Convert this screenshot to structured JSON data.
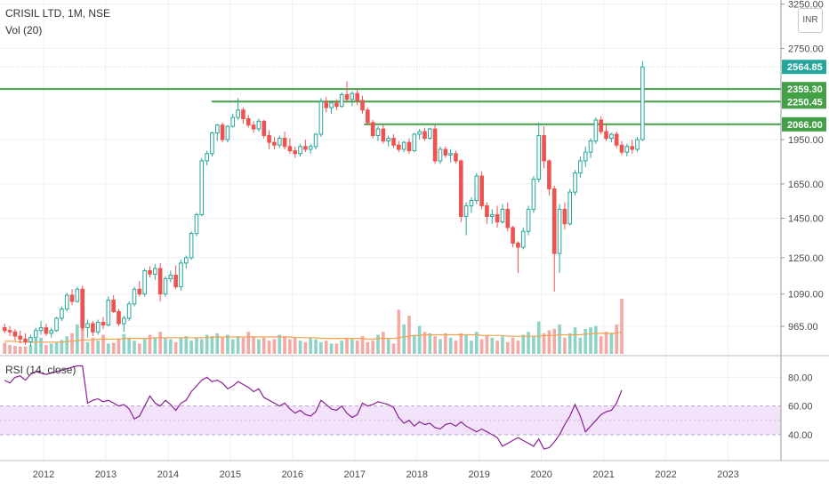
{
  "header": {
    "title": "CRISIL LTD, 1M, NSE",
    "volume_label": "Vol (20)",
    "rsi_label": "RSI (14, close)",
    "currency": "INR"
  },
  "colors": {
    "up": "#26a69a",
    "down": "#ef5350",
    "vol_up": "#8fd3c6",
    "vol_down": "#f4a9a5",
    "vol_ma": "#f4a24b",
    "rsi": "#8c1f96",
    "rsi_band": "#f2e3fb",
    "level": "#43a047",
    "grid": "#eef0f3",
    "axis_text": "#4a4a4a"
  },
  "chart_data": {
    "type": "candlestick",
    "price_axis": {
      "ticks": [
        "965.00",
        "1090.00",
        "1250.00",
        "1450.00",
        "1650.00",
        "1950.00",
        "2750.00",
        "3250.00"
      ],
      "tick_values": [
        965,
        1090,
        1250,
        1450,
        1650,
        1950,
        2750,
        3250
      ],
      "scale": "log",
      "range": [
        870,
        3300
      ]
    },
    "time_axis": {
      "ticks": [
        "2012",
        "2013",
        "2014",
        "2015",
        "2016",
        "2017",
        "2018",
        "2019",
        "2020",
        "2021",
        "2022",
        "2023"
      ],
      "range_years": [
        2011.3,
        2023.85
      ]
    },
    "levels": [
      {
        "label": "2359.30",
        "value": 2359.3,
        "start_year": 2011.3
      },
      {
        "label": "2250.45",
        "value": 2250.45,
        "start_year": 2014.7
      },
      {
        "label": "2066.00",
        "value": 2066.0,
        "start_year": 2017.15
      }
    ],
    "last_price": {
      "label": "2564.85",
      "value": 2564.85
    },
    "candles_start": {
      "year": 2011,
      "month": 5
    },
    "candles": [
      [
        960,
        975,
        940,
        950
      ],
      [
        950,
        965,
        930,
        945
      ],
      [
        945,
        955,
        915,
        930
      ],
      [
        930,
        950,
        905,
        920
      ],
      [
        920,
        940,
        900,
        910
      ],
      [
        910,
        935,
        895,
        925
      ],
      [
        925,
        960,
        915,
        950
      ],
      [
        950,
        985,
        935,
        960
      ],
      [
        960,
        975,
        930,
        940
      ],
      [
        940,
        960,
        925,
        950
      ],
      [
        950,
        1000,
        945,
        995
      ],
      [
        995,
        1040,
        985,
        1030
      ],
      [
        1030,
        1095,
        1020,
        1085
      ],
      [
        1085,
        1110,
        1045,
        1060
      ],
      [
        1060,
        1120,
        1055,
        1110
      ],
      [
        1110,
        1125,
        950,
        960
      ],
      [
        960,
        990,
        925,
        975
      ],
      [
        975,
        985,
        930,
        945
      ],
      [
        945,
        990,
        935,
        980
      ],
      [
        980,
        1000,
        955,
        970
      ],
      [
        970,
        1080,
        965,
        1065
      ],
      [
        1065,
        1085,
        1015,
        1020
      ],
      [
        1020,
        1030,
        965,
        975
      ],
      [
        975,
        1005,
        945,
        995
      ],
      [
        995,
        1060,
        985,
        1050
      ],
      [
        1050,
        1120,
        1040,
        1110
      ],
      [
        1110,
        1145,
        1080,
        1090
      ],
      [
        1090,
        1200,
        1080,
        1190
      ],
      [
        1190,
        1210,
        1160,
        1175
      ],
      [
        1175,
        1220,
        1150,
        1200
      ],
      [
        1200,
        1225,
        1060,
        1090
      ],
      [
        1090,
        1165,
        1080,
        1155
      ],
      [
        1155,
        1190,
        1140,
        1170
      ],
      [
        1170,
        1215,
        1110,
        1120
      ],
      [
        1120,
        1240,
        1105,
        1225
      ],
      [
        1225,
        1260,
        1200,
        1250
      ],
      [
        1250,
        1380,
        1240,
        1370
      ],
      [
        1370,
        1480,
        1355,
        1470
      ],
      [
        1470,
        1820,
        1460,
        1800
      ],
      [
        1800,
        1870,
        1770,
        1850
      ],
      [
        1850,
        2010,
        1830,
        2000
      ],
      [
        2000,
        2070,
        1940,
        2060
      ],
      [
        2060,
        2080,
        1930,
        1950
      ],
      [
        1950,
        2060,
        1930,
        2050
      ],
      [
        2050,
        2150,
        2040,
        2120
      ],
      [
        2120,
        2280,
        2100,
        2180
      ],
      [
        2180,
        2200,
        2070,
        2110
      ],
      [
        2110,
        2140,
        2040,
        2060
      ],
      [
        2060,
        2090,
        2000,
        2030
      ],
      [
        2030,
        2110,
        2010,
        2090
      ],
      [
        2090,
        2100,
        1960,
        1980
      ],
      [
        1980,
        2020,
        1880,
        1930
      ],
      [
        1930,
        1970,
        1880,
        1910
      ],
      [
        1910,
        1980,
        1890,
        1960
      ],
      [
        1960,
        2010,
        1880,
        1900
      ],
      [
        1900,
        1960,
        1850,
        1870
      ],
      [
        1870,
        1900,
        1820,
        1850
      ],
      [
        1850,
        1920,
        1830,
        1900
      ],
      [
        1900,
        1950,
        1860,
        1880
      ],
      [
        1880,
        1920,
        1850,
        1900
      ],
      [
        1900,
        2000,
        1880,
        1990
      ],
      [
        1990,
        2280,
        1970,
        2250
      ],
      [
        2250,
        2290,
        2160,
        2200
      ],
      [
        2200,
        2260,
        2150,
        2240
      ],
      [
        2240,
        2270,
        2180,
        2210
      ],
      [
        2210,
        2330,
        2200,
        2310
      ],
      [
        2310,
        2430,
        2240,
        2270
      ],
      [
        2270,
        2340,
        2210,
        2320
      ],
      [
        2320,
        2350,
        2220,
        2260
      ],
      [
        2260,
        2300,
        2150,
        2180
      ],
      [
        2180,
        2200,
        2060,
        2080
      ],
      [
        2080,
        2100,
        1960,
        1980
      ],
      [
        1980,
        2050,
        1940,
        2030
      ],
      [
        2030,
        2060,
        1920,
        1940
      ],
      [
        1940,
        1980,
        1900,
        1960
      ],
      [
        1960,
        1990,
        1890,
        1910
      ],
      [
        1910,
        1940,
        1860,
        1880
      ],
      [
        1880,
        1940,
        1860,
        1930
      ],
      [
        1930,
        1960,
        1850,
        1870
      ],
      [
        1870,
        2000,
        1860,
        1990
      ],
      [
        1990,
        2030,
        1950,
        2010
      ],
      [
        2010,
        2040,
        1940,
        1960
      ],
      [
        1960,
        2040,
        1950,
        2030
      ],
      [
        2030,
        2060,
        1780,
        1800
      ],
      [
        1800,
        1900,
        1780,
        1880
      ],
      [
        1880,
        1900,
        1820,
        1840
      ],
      [
        1840,
        1880,
        1790,
        1850
      ],
      [
        1850,
        1870,
        1780,
        1800
      ],
      [
        1800,
        1810,
        1430,
        1460
      ],
      [
        1460,
        1540,
        1360,
        1520
      ],
      [
        1520,
        1570,
        1480,
        1550
      ],
      [
        1550,
        1720,
        1530,
        1700
      ],
      [
        1700,
        1730,
        1500,
        1520
      ],
      [
        1520,
        1540,
        1420,
        1460
      ],
      [
        1460,
        1500,
        1420,
        1470
      ],
      [
        1470,
        1520,
        1400,
        1430
      ],
      [
        1430,
        1530,
        1420,
        1500
      ],
      [
        1500,
        1540,
        1380,
        1400
      ],
      [
        1400,
        1410,
        1300,
        1320
      ],
      [
        1320,
        1330,
        1180,
        1300
      ],
      [
        1300,
        1400,
        1290,
        1380
      ],
      [
        1380,
        1520,
        1360,
        1500
      ],
      [
        1500,
        1700,
        1480,
        1680
      ],
      [
        1680,
        2080,
        1660,
        1980
      ],
      [
        1980,
        2050,
        1750,
        1800
      ],
      [
        1800,
        1810,
        1580,
        1620
      ],
      [
        1620,
        1640,
        1100,
        1270
      ],
      [
        1270,
        1530,
        1180,
        1500
      ],
      [
        1500,
        1540,
        1390,
        1420
      ],
      [
        1420,
        1620,
        1410,
        1600
      ],
      [
        1600,
        1740,
        1580,
        1720
      ],
      [
        1720,
        1830,
        1690,
        1800
      ],
      [
        1800,
        1900,
        1760,
        1860
      ],
      [
        1860,
        1960,
        1820,
        1940
      ],
      [
        1940,
        2120,
        1920,
        2100
      ],
      [
        2100,
        2130,
        1990,
        2010
      ],
      [
        2010,
        2060,
        1940,
        1960
      ],
      [
        1960,
        2000,
        1930,
        1990
      ],
      [
        1990,
        2010,
        1890,
        1910
      ],
      [
        1910,
        1940,
        1840,
        1860
      ],
      [
        1860,
        1920,
        1830,
        1900
      ],
      [
        1900,
        1950,
        1850,
        1880
      ],
      [
        1880,
        1970,
        1860,
        1950
      ],
      [
        1950,
        2620,
        1940,
        2564.85
      ]
    ],
    "volume": [
      15,
      12,
      11,
      10,
      10,
      12,
      20,
      22,
      12,
      14,
      16,
      19,
      24,
      28,
      40,
      36,
      16,
      22,
      18,
      26,
      14,
      15,
      20,
      27,
      22,
      18,
      14,
      20,
      26,
      22,
      30,
      22,
      20,
      16,
      22,
      24,
      18,
      22,
      20,
      26,
      24,
      28,
      22,
      26,
      20,
      24,
      22,
      30,
      24,
      20,
      22,
      18,
      20,
      26,
      24,
      20,
      22,
      18,
      16,
      22,
      20,
      16,
      18,
      14,
      14,
      18,
      22,
      20,
      18,
      24,
      16,
      18,
      26,
      30,
      20,
      14,
      60,
      40,
      52,
      26,
      38,
      30,
      28,
      24,
      20,
      28,
      22,
      18,
      28,
      26,
      18,
      30,
      20,
      26,
      22,
      18,
      24,
      16,
      22,
      18,
      26,
      30,
      24,
      44,
      28,
      32,
      34,
      40,
      22,
      28,
      36,
      22,
      34,
      36,
      38,
      24,
      30,
      28,
      40,
      75
    ],
    "volume_ma": [
      17,
      17,
      17,
      16,
      16,
      16,
      16,
      16,
      16,
      16,
      16,
      16,
      17,
      17,
      18,
      19,
      19,
      19,
      20,
      20,
      20,
      20,
      20,
      21,
      21,
      21,
      21,
      21,
      21,
      22,
      22,
      22,
      22,
      22,
      22,
      22,
      22,
      22,
      22,
      22,
      23,
      23,
      23,
      23,
      23,
      23,
      23,
      23,
      23,
      23,
      23,
      23,
      23,
      23,
      23,
      23,
      22,
      22,
      22,
      22,
      22,
      21,
      21,
      21,
      21,
      21,
      21,
      21,
      21,
      21,
      20,
      20,
      21,
      21,
      21,
      21,
      22,
      23,
      24,
      25,
      25,
      26,
      26,
      26,
      26,
      26,
      26,
      26,
      26,
      26,
      26,
      26,
      25,
      25,
      25,
      25,
      25,
      24,
      24,
      24,
      24,
      24,
      24,
      24,
      25,
      25,
      25,
      26,
      26,
      26,
      26,
      26,
      27,
      27,
      28,
      28,
      28,
      28,
      28,
      30
    ],
    "rsi": {
      "ticks": [
        "40.00",
        "60.00",
        "80.00"
      ],
      "tick_values": [
        40,
        60,
        80
      ],
      "range": [
        22,
        92
      ],
      "band": [
        40,
        60
      ],
      "values": [
        78,
        76,
        80,
        81,
        78,
        82,
        84,
        83,
        82,
        83,
        84,
        85,
        86,
        87,
        88,
        88,
        62,
        64,
        65,
        63,
        64,
        62,
        60,
        61,
        58,
        51,
        53,
        60,
        67,
        62,
        60,
        64,
        61,
        57,
        62,
        64,
        70,
        74,
        78,
        80,
        77,
        78,
        76,
        72,
        74,
        77,
        75,
        73,
        70,
        72,
        66,
        64,
        62,
        60,
        62,
        58,
        55,
        57,
        54,
        53,
        56,
        64,
        61,
        58,
        57,
        60,
        55,
        52,
        54,
        62,
        60,
        61,
        63,
        62,
        61,
        59,
        52,
        48,
        50,
        46,
        49,
        47,
        48,
        45,
        44,
        47,
        48,
        46,
        49,
        46,
        44,
        42,
        44,
        42,
        40,
        38,
        32,
        34,
        36,
        38,
        36,
        34,
        32,
        37,
        30,
        31,
        35,
        40,
        47,
        53,
        61,
        53,
        42,
        46,
        50,
        54,
        56,
        57,
        62,
        71
      ]
    }
  }
}
